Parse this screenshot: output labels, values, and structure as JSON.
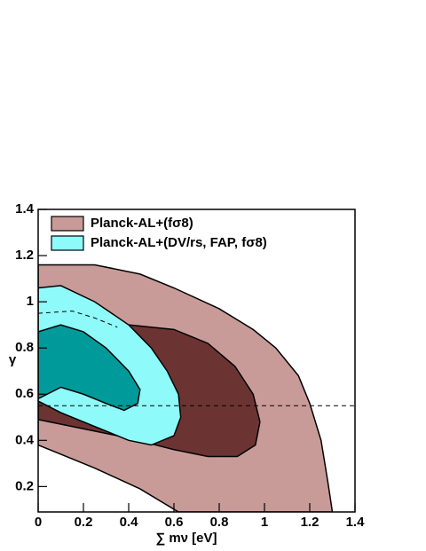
{
  "chart_data": {
    "type": "contour",
    "x_label": "∑ mν [eV]",
    "y_label": "γ",
    "xlim": [
      0,
      1.4
    ],
    "ylim": [
      0.09,
      1.4
    ],
    "xticks": [
      0,
      0.2,
      0.4,
      0.6,
      0.8,
      1,
      1.2,
      1.4
    ],
    "yticks": [
      0.2,
      0.4,
      0.6,
      0.8,
      1,
      1.2,
      1.4
    ],
    "legend": "upper left",
    "series": [
      {
        "name": "Planck-AL+(fσ8)",
        "colors": [
          "#c99b98",
          "#6b3433"
        ],
        "contours": [
          {
            "x": [
              0,
              0,
              0.25,
              0.45,
              0.6,
              0.8,
              0.95,
              1.05,
              1.15,
              1.2,
              1.25,
              1.28,
              1.3,
              0.62,
              0.45,
              0.25
            ],
            "y": [
              0.38,
              1.16,
              1.16,
              1.12,
              1.06,
              0.97,
              0.88,
              0.8,
              0.68,
              0.56,
              0.4,
              0.22,
              0.09,
              0.09,
              0.19,
              0.28
            ]
          },
          {
            "x": [
              0,
              0.2,
              0.4,
              0.6,
              0.75,
              0.87,
              0.95,
              0.98,
              0.96,
              0.88,
              0.75,
              0.6,
              0.4,
              0.2,
              0
            ],
            "y": [
              0.57,
              0.8,
              0.9,
              0.88,
              0.82,
              0.72,
              0.6,
              0.48,
              0.38,
              0.33,
              0.33,
              0.36,
              0.41,
              0.45,
              0.49
            ]
          }
        ]
      },
      {
        "name": "Planck-AL+(DV/rs, FAP, fσ8)",
        "colors": [
          "#8ffafa",
          "#009a9a"
        ],
        "contours": [
          {
            "x": [
              0,
              0,
              0.1,
              0.25,
              0.4,
              0.5,
              0.57,
              0.62,
              0.63,
              0.6,
              0.5,
              0.4,
              0.25,
              0.1
            ],
            "y": [
              0.57,
              1.06,
              1.07,
              1.0,
              0.9,
              0.8,
              0.7,
              0.6,
              0.5,
              0.42,
              0.38,
              0.4,
              0.46,
              0.52
            ]
          },
          {
            "x": [
              0,
              0,
              0.1,
              0.2,
              0.3,
              0.4,
              0.45,
              0.44,
              0.38,
              0.3,
              0.2,
              0.1
            ],
            "y": [
              0.58,
              0.87,
              0.9,
              0.87,
              0.8,
              0.7,
              0.62,
              0.56,
              0.53,
              0.56,
              0.6,
              0.63
            ]
          }
        ]
      }
    ],
    "lines": [
      {
        "x": [
          0,
          1.4
        ],
        "y": [
          0.55,
          0.55
        ]
      },
      {
        "x": [
          0,
          0.15,
          0.25,
          0.35
        ],
        "y": [
          0.95,
          0.96,
          0.93,
          0.89
        ]
      }
    ]
  }
}
